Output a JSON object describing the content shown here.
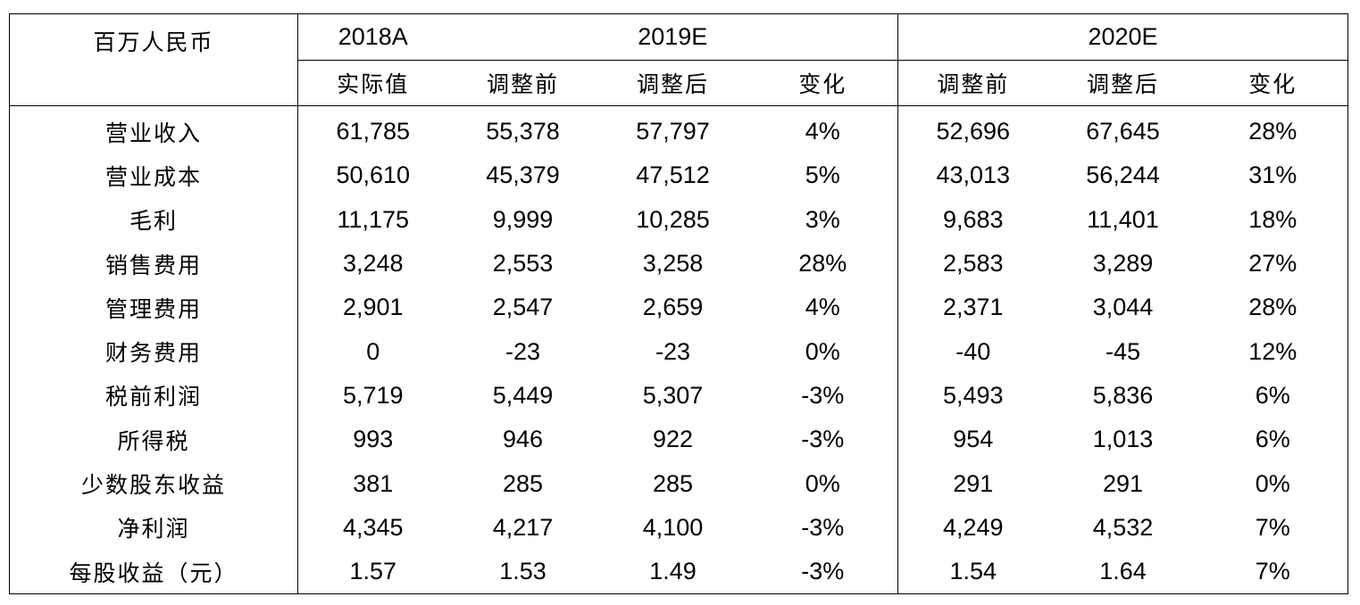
{
  "header": {
    "unit_label": "百万人民币",
    "years": [
      "2018A",
      "2019E",
      "2020E"
    ],
    "subheaders": [
      "实际值",
      "调整前",
      "调整后",
      "变化",
      "调整前",
      "调整后",
      "变化"
    ]
  },
  "rows": [
    {
      "label": "营业收入",
      "cells": [
        "61,785",
        "55,378",
        "57,797",
        "4%",
        "52,696",
        "67,645",
        "28%"
      ]
    },
    {
      "label": "营业成本",
      "cells": [
        "50,610",
        "45,379",
        "47,512",
        "5%",
        "43,013",
        "56,244",
        "31%"
      ]
    },
    {
      "label": "毛利",
      "cells": [
        "11,175",
        "9,999",
        "10,285",
        "3%",
        "9,683",
        "11,401",
        "18%"
      ]
    },
    {
      "label": "销售费用",
      "cells": [
        "3,248",
        "2,553",
        "3,258",
        "28%",
        "2,583",
        "3,289",
        "27%"
      ]
    },
    {
      "label": "管理费用",
      "cells": [
        "2,901",
        "2,547",
        "2,659",
        "4%",
        "2,371",
        "3,044",
        "28%"
      ]
    },
    {
      "label": "财务费用",
      "cells": [
        "0",
        "-23",
        "-23",
        "0%",
        "-40",
        "-45",
        "12%"
      ]
    },
    {
      "label": "税前利润",
      "cells": [
        "5,719",
        "5,449",
        "5,307",
        "-3%",
        "5,493",
        "5,836",
        "6%"
      ]
    },
    {
      "label": "所得税",
      "cells": [
        "993",
        "946",
        "922",
        "-3%",
        "954",
        "1,013",
        "6%"
      ]
    },
    {
      "label": "少数股东收益",
      "cells": [
        "381",
        "285",
        "285",
        "0%",
        "291",
        "291",
        "0%"
      ]
    },
    {
      "label": "净利润",
      "cells": [
        "4,345",
        "4,217",
        "4,100",
        "-3%",
        "4,249",
        "4,532",
        "7%"
      ]
    },
    {
      "label": "每股收益（元）",
      "cells": [
        "1.57",
        "1.53",
        "1.49",
        "-3%",
        "1.54",
        "1.64",
        "7%"
      ]
    }
  ]
}
